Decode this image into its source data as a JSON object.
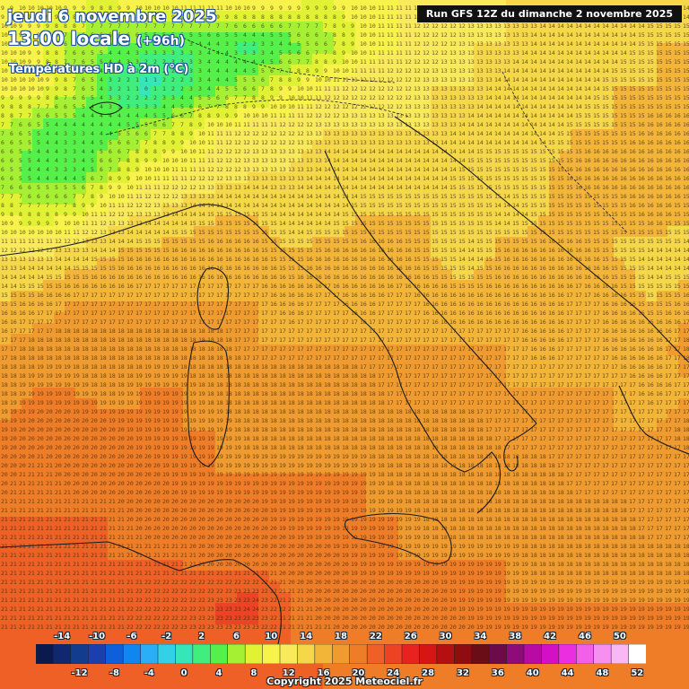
{
  "header": {
    "date": "jeudi 6 novembre 2025",
    "time": "13:00 locale",
    "lead": "(+96h)",
    "variable": "Températures HD à 2m (°C)",
    "run": "Run GFS 12Z du dimanche 2 novembre 2025"
  },
  "footer": {
    "copyright": "Copyright 2025 Meteociel.fr"
  },
  "legend": {
    "top_labels": [
      "-14",
      "-10",
      "-6",
      "-2",
      "2",
      "6",
      "10",
      "14",
      "18",
      "22",
      "26",
      "30",
      "34",
      "38",
      "42",
      "46",
      "50"
    ],
    "bottom_labels": [
      "-12",
      "-8",
      "-4",
      "0",
      "4",
      "8",
      "12",
      "16",
      "20",
      "24",
      "28",
      "32",
      "36",
      "40",
      "44",
      "48",
      "52"
    ],
    "colors": [
      "#0b1a4e",
      "#10296e",
      "#123d8f",
      "#1c3fb0",
      "#0f5fdd",
      "#0f86f0",
      "#2aaef5",
      "#33d1e8",
      "#34e6b8",
      "#3fee7c",
      "#55f04a",
      "#a6f033",
      "#e0f233",
      "#f7f34a",
      "#f9ea5c",
      "#f5d74a",
      "#f2b537",
      "#f09b2f",
      "#ef7d27",
      "#ee6025",
      "#ec4324",
      "#e8231f",
      "#d81515",
      "#b50f12",
      "#8f0c10",
      "#6a0d16",
      "#6d0b4a",
      "#8f0b7a",
      "#b80aa4",
      "#d40fc4",
      "#ea2ee0",
      "#f260ea",
      "#f68ff0",
      "#f9b8f5",
      "#ffffff"
    ]
  },
  "map": {
    "region": "Italie et Méditerranée centrale",
    "grid_values": [
      [
        9,
        10,
        10,
        9,
        11,
        12,
        12,
        11,
        10,
        9,
        10,
        11,
        12,
        12,
        13,
        13,
        14,
        14,
        14,
        14
      ],
      [
        10,
        9,
        6,
        5,
        4,
        3,
        4,
        2,
        4,
        6,
        10,
        11,
        12,
        13,
        13,
        14,
        14,
        14,
        15,
        15
      ],
      [
        10,
        10,
        8,
        3,
        0,
        2,
        4,
        6,
        9,
        11,
        12,
        12,
        13,
        13,
        14,
        14,
        14,
        15,
        15,
        15
      ],
      [
        7,
        5,
        3,
        4,
        6,
        8,
        11,
        12,
        12,
        13,
        13,
        13,
        13,
        14,
        14,
        14,
        15,
        15,
        16,
        16
      ],
      [
        6,
        4,
        3,
        7,
        10,
        11,
        12,
        13,
        13,
        14,
        14,
        14,
        14,
        15,
        15,
        15,
        16,
        16,
        16,
        16
      ],
      [
        9,
        8,
        9,
        12,
        13,
        14,
        15,
        15,
        14,
        14,
        15,
        15,
        15,
        15,
        14,
        15,
        15,
        15,
        16,
        15
      ],
      [
        13,
        13,
        14,
        15,
        16,
        16,
        16,
        16,
        15,
        16,
        16,
        16,
        15,
        14,
        16,
        16,
        16,
        15,
        14,
        14
      ],
      [
        15,
        16,
        17,
        17,
        17,
        17,
        17,
        17,
        16,
        17,
        16,
        17,
        16,
        16,
        16,
        16,
        17,
        16,
        15,
        16
      ],
      [
        17,
        18,
        18,
        18,
        18,
        18,
        18,
        17,
        17,
        17,
        17,
        17,
        17,
        17,
        17,
        16,
        17,
        16,
        16,
        18
      ],
      [
        18,
        19,
        19,
        18,
        19,
        19,
        18,
        18,
        18,
        18,
        18,
        17,
        17,
        17,
        17,
        17,
        17,
        17,
        16,
        17
      ],
      [
        19,
        20,
        20,
        20,
        19,
        19,
        19,
        18,
        18,
        18,
        18,
        18,
        18,
        18,
        17,
        17,
        17,
        17,
        17,
        18
      ],
      [
        20,
        21,
        20,
        20,
        20,
        19,
        19,
        19,
        19,
        19,
        19,
        18,
        18,
        18,
        18,
        18,
        17,
        17,
        17,
        17
      ],
      [
        21,
        21,
        21,
        21,
        20,
        20,
        20,
        20,
        19,
        19,
        19,
        19,
        18,
        18,
        18,
        18,
        18,
        18,
        17,
        17
      ],
      [
        21,
        21,
        21,
        21,
        21,
        21,
        20,
        20,
        20,
        20,
        19,
        19,
        19,
        19,
        19,
        18,
        18,
        18,
        18,
        18
      ],
      [
        21,
        21,
        21,
        21,
        22,
        22,
        23,
        24,
        21,
        20,
        20,
        20,
        20,
        19,
        19,
        19,
        19,
        19,
        19,
        19
      ],
      [
        21,
        21,
        21,
        21,
        22,
        23,
        23,
        22,
        21,
        21,
        20,
        20,
        20,
        20,
        19,
        19,
        19,
        19,
        19,
        19
      ],
      [
        21,
        21,
        21,
        21,
        22,
        22,
        22,
        21,
        21,
        21,
        20,
        20,
        20,
        20,
        19,
        19,
        19,
        19,
        19,
        19
      ]
    ]
  }
}
